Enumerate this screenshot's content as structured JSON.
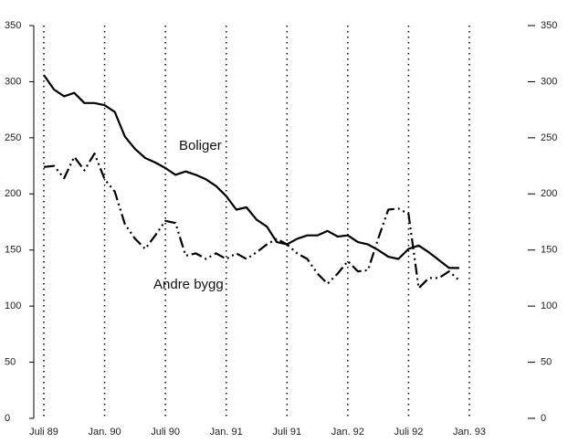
{
  "chart_data": {
    "type": "line",
    "categories": [
      "Juli 89",
      null,
      null,
      null,
      null,
      null,
      "Jan. 90",
      null,
      null,
      null,
      null,
      null,
      "Juli 90",
      null,
      null,
      null,
      null,
      null,
      "Jan. 91",
      null,
      null,
      null,
      null,
      null,
      "Juli 91",
      null,
      null,
      null,
      null,
      null,
      "Jan. 92",
      null,
      null,
      null,
      null,
      null,
      "Juli 92",
      null,
      null,
      null,
      null,
      null,
      "Jan. 93"
    ],
    "series": [
      {
        "name": "Boliger",
        "color": "#000000",
        "style": "solid",
        "values": [
          306,
          293,
          287,
          290,
          281,
          281,
          279,
          273,
          251,
          240,
          232,
          228,
          223,
          217,
          220,
          217,
          213,
          207,
          198,
          186,
          188,
          177,
          171,
          157,
          155,
          160,
          163,
          163,
          167,
          162,
          163,
          157,
          155,
          150,
          144,
          142,
          151,
          154,
          148,
          141,
          134,
          134,
          null
        ]
      },
      {
        "name": "Andre bygg",
        "color": "#000000",
        "style": "dashdot",
        "values": [
          224,
          225,
          214,
          233,
          221,
          236,
          213,
          202,
          173,
          160,
          151,
          163,
          176,
          174,
          145,
          147,
          142,
          147,
          142,
          147,
          142,
          148,
          155,
          160,
          155,
          147,
          142,
          129,
          120,
          129,
          140,
          131,
          132,
          160,
          186,
          187,
          182,
          116,
          125,
          125,
          131,
          123,
          null
        ]
      }
    ],
    "annotations": [
      {
        "text": "Boliger",
        "series": 0
      },
      {
        "text": "Andre bygg",
        "series": 1
      }
    ],
    "ylim": [
      0,
      350
    ],
    "yticks": [
      0,
      50,
      100,
      150,
      200,
      250,
      300,
      350
    ],
    "right_axis": true,
    "grid": "x-dotted"
  }
}
